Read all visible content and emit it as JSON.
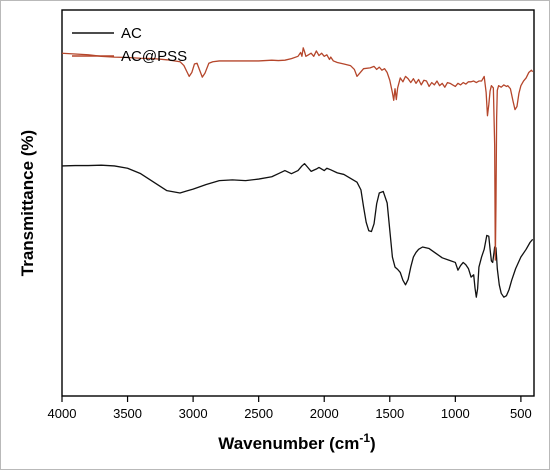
{
  "chart_data": {
    "type": "line",
    "title": "",
    "xlabel": "Wavenumber (cm",
    "xlabel_sup": "-1",
    "xlabel_close": ")",
    "ylabel": "Transmittance (%)",
    "xlim": [
      4000,
      400
    ],
    "x_reversed": true,
    "ylim": [
      0,
      100
    ],
    "y_tick_labels_shown": false,
    "x_ticks": [
      4000,
      3500,
      3000,
      2500,
      2000,
      1500,
      1000,
      500
    ],
    "x_tick_labels": [
      "4000",
      "3500",
      "3000",
      "2500",
      "2000",
      "1500",
      "1000",
      "500"
    ],
    "legend_position": "top-left",
    "grid": false,
    "series": [
      {
        "name": "AC",
        "color": "#111111",
        "points": [
          [
            4000,
            59.6
          ],
          [
            3900,
            59.7
          ],
          [
            3800,
            59.7
          ],
          [
            3700,
            59.8
          ],
          [
            3600,
            59.6
          ],
          [
            3500,
            59.0
          ],
          [
            3400,
            57.6
          ],
          [
            3300,
            55.4
          ],
          [
            3200,
            53.2
          ],
          [
            3100,
            52.6
          ],
          [
            3050,
            53.1
          ],
          [
            3000,
            53.6
          ],
          [
            2900,
            54.8
          ],
          [
            2800,
            55.8
          ],
          [
            2700,
            56.0
          ],
          [
            2600,
            55.8
          ],
          [
            2500,
            56.2
          ],
          [
            2400,
            56.8
          ],
          [
            2350,
            57.6
          ],
          [
            2300,
            58.4
          ],
          [
            2250,
            57.6
          ],
          [
            2200,
            58.4
          ],
          [
            2170,
            59.6
          ],
          [
            2150,
            60.2
          ],
          [
            2120,
            59.0
          ],
          [
            2100,
            58.2
          ],
          [
            2060,
            58.8
          ],
          [
            2040,
            59.2
          ],
          [
            2000,
            58.4
          ],
          [
            1980,
            59.0
          ],
          [
            1950,
            58.6
          ],
          [
            1900,
            57.8
          ],
          [
            1850,
            57.4
          ],
          [
            1800,
            56.4
          ],
          [
            1750,
            55.4
          ],
          [
            1720,
            53.4
          ],
          [
            1700,
            49.0
          ],
          [
            1680,
            45.0
          ],
          [
            1660,
            42.8
          ],
          [
            1640,
            42.6
          ],
          [
            1620,
            44.6
          ],
          [
            1600,
            49.8
          ],
          [
            1580,
            52.6
          ],
          [
            1550,
            53.0
          ],
          [
            1520,
            50.0
          ],
          [
            1500,
            43.0
          ],
          [
            1480,
            36.0
          ],
          [
            1460,
            33.4
          ],
          [
            1440,
            32.8
          ],
          [
            1420,
            32.0
          ],
          [
            1400,
            30.0
          ],
          [
            1380,
            28.8
          ],
          [
            1360,
            30.2
          ],
          [
            1340,
            33.4
          ],
          [
            1320,
            36.0
          ],
          [
            1300,
            37.2
          ],
          [
            1280,
            38.0
          ],
          [
            1250,
            38.6
          ],
          [
            1200,
            38.2
          ],
          [
            1150,
            37.0
          ],
          [
            1100,
            35.8
          ],
          [
            1050,
            35.2
          ],
          [
            1000,
            34.6
          ],
          [
            980,
            32.6
          ],
          [
            960,
            33.8
          ],
          [
            940,
            34.6
          ],
          [
            920,
            34.0
          ],
          [
            900,
            33.0
          ],
          [
            880,
            30.8
          ],
          [
            860,
            31.4
          ],
          [
            850,
            28.0
          ],
          [
            840,
            25.6
          ],
          [
            830,
            27.8
          ],
          [
            820,
            33.4
          ],
          [
            800,
            36.0
          ],
          [
            780,
            38.0
          ],
          [
            760,
            41.6
          ],
          [
            745,
            41.4
          ],
          [
            735,
            38.0
          ],
          [
            725,
            35.0
          ],
          [
            715,
            34.6
          ],
          [
            705,
            37.2
          ],
          [
            700,
            38.6
          ],
          [
            690,
            38.4
          ],
          [
            680,
            33.0
          ],
          [
            665,
            28.8
          ],
          [
            650,
            26.6
          ],
          [
            630,
            25.6
          ],
          [
            610,
            26.0
          ],
          [
            590,
            27.6
          ],
          [
            570,
            30.0
          ],
          [
            540,
            33.0
          ],
          [
            500,
            36.0
          ],
          [
            460,
            38.0
          ],
          [
            430,
            39.8
          ],
          [
            410,
            40.6
          ]
        ]
      },
      {
        "name": "AC@PSS",
        "color": "#b5462b",
        "points": [
          [
            4000,
            88.8
          ],
          [
            3900,
            88.6
          ],
          [
            3800,
            88.4
          ],
          [
            3700,
            88.0
          ],
          [
            3600,
            87.8
          ],
          [
            3500,
            87.7
          ],
          [
            3400,
            87.5
          ],
          [
            3300,
            87.4
          ],
          [
            3200,
            87.1
          ],
          [
            3100,
            86.6
          ],
          [
            3070,
            85.6
          ],
          [
            3050,
            84.2
          ],
          [
            3030,
            82.8
          ],
          [
            3010,
            83.8
          ],
          [
            2990,
            86.0
          ],
          [
            2970,
            86.2
          ],
          [
            2950,
            84.4
          ],
          [
            2930,
            82.6
          ],
          [
            2910,
            83.6
          ],
          [
            2880,
            86.2
          ],
          [
            2850,
            86.6
          ],
          [
            2800,
            86.8
          ],
          [
            2700,
            86.8
          ],
          [
            2600,
            86.8
          ],
          [
            2500,
            86.8
          ],
          [
            2450,
            86.9
          ],
          [
            2400,
            87.0
          ],
          [
            2350,
            86.9
          ],
          [
            2300,
            87.0
          ],
          [
            2250,
            87.4
          ],
          [
            2200,
            88.0
          ],
          [
            2180,
            89.0
          ],
          [
            2170,
            88.0
          ],
          [
            2160,
            90.2
          ],
          [
            2150,
            89.2
          ],
          [
            2140,
            88.0
          ],
          [
            2120,
            88.4
          ],
          [
            2100,
            88.8
          ],
          [
            2080,
            88.0
          ],
          [
            2060,
            89.4
          ],
          [
            2040,
            88.2
          ],
          [
            2020,
            88.8
          ],
          [
            2000,
            88.0
          ],
          [
            1980,
            88.4
          ],
          [
            1960,
            87.2
          ],
          [
            1950,
            87.8
          ],
          [
            1930,
            86.8
          ],
          [
            1900,
            86.4
          ],
          [
            1850,
            86.0
          ],
          [
            1800,
            85.6
          ],
          [
            1770,
            84.6
          ],
          [
            1750,
            82.8
          ],
          [
            1730,
            83.6
          ],
          [
            1700,
            84.8
          ],
          [
            1650,
            85.0
          ],
          [
            1620,
            85.4
          ],
          [
            1600,
            84.6
          ],
          [
            1580,
            85.2
          ],
          [
            1560,
            84.4
          ],
          [
            1540,
            84.8
          ],
          [
            1520,
            83.8
          ],
          [
            1500,
            81.8
          ],
          [
            1480,
            78.6
          ],
          [
            1470,
            76.6
          ],
          [
            1460,
            79.6
          ],
          [
            1450,
            76.8
          ],
          [
            1440,
            79.8
          ],
          [
            1420,
            82.4
          ],
          [
            1400,
            81.4
          ],
          [
            1380,
            82.8
          ],
          [
            1360,
            82.2
          ],
          [
            1340,
            81.2
          ],
          [
            1320,
            82.2
          ],
          [
            1300,
            81.0
          ],
          [
            1280,
            82.0
          ],
          [
            1260,
            80.6
          ],
          [
            1240,
            81.8
          ],
          [
            1220,
            81.6
          ],
          [
            1200,
            80.2
          ],
          [
            1180,
            81.2
          ],
          [
            1160,
            80.6
          ],
          [
            1140,
            81.6
          ],
          [
            1120,
            80.4
          ],
          [
            1100,
            81.0
          ],
          [
            1080,
            80.0
          ],
          [
            1060,
            81.2
          ],
          [
            1040,
            81.0
          ],
          [
            1020,
            80.6
          ],
          [
            1000,
            80.2
          ],
          [
            980,
            81.0
          ],
          [
            960,
            80.6
          ],
          [
            940,
            81.2
          ],
          [
            920,
            80.8
          ],
          [
            900,
            81.4
          ],
          [
            880,
            81.4
          ],
          [
            860,
            81.6
          ],
          [
            840,
            81.2
          ],
          [
            820,
            81.6
          ],
          [
            800,
            81.6
          ],
          [
            780,
            82.8
          ],
          [
            765,
            78.6
          ],
          [
            755,
            72.6
          ],
          [
            745,
            75.4
          ],
          [
            735,
            79.0
          ],
          [
            725,
            80.4
          ],
          [
            710,
            79.8
          ],
          [
            700,
            65.0
          ],
          [
            695,
            35.2
          ],
          [
            690,
            50.0
          ],
          [
            685,
            72.0
          ],
          [
            680,
            79.2
          ],
          [
            670,
            80.4
          ],
          [
            650,
            80.0
          ],
          [
            630,
            80.6
          ],
          [
            610,
            80.2
          ],
          [
            600,
            80.4
          ],
          [
            580,
            79.6
          ],
          [
            560,
            76.4
          ],
          [
            545,
            74.2
          ],
          [
            530,
            75.0
          ],
          [
            515,
            78.4
          ],
          [
            500,
            80.4
          ],
          [
            480,
            81.6
          ],
          [
            460,
            82.4
          ],
          [
            440,
            83.8
          ],
          [
            420,
            84.4
          ],
          [
            410,
            84.0
          ]
        ]
      }
    ]
  }
}
